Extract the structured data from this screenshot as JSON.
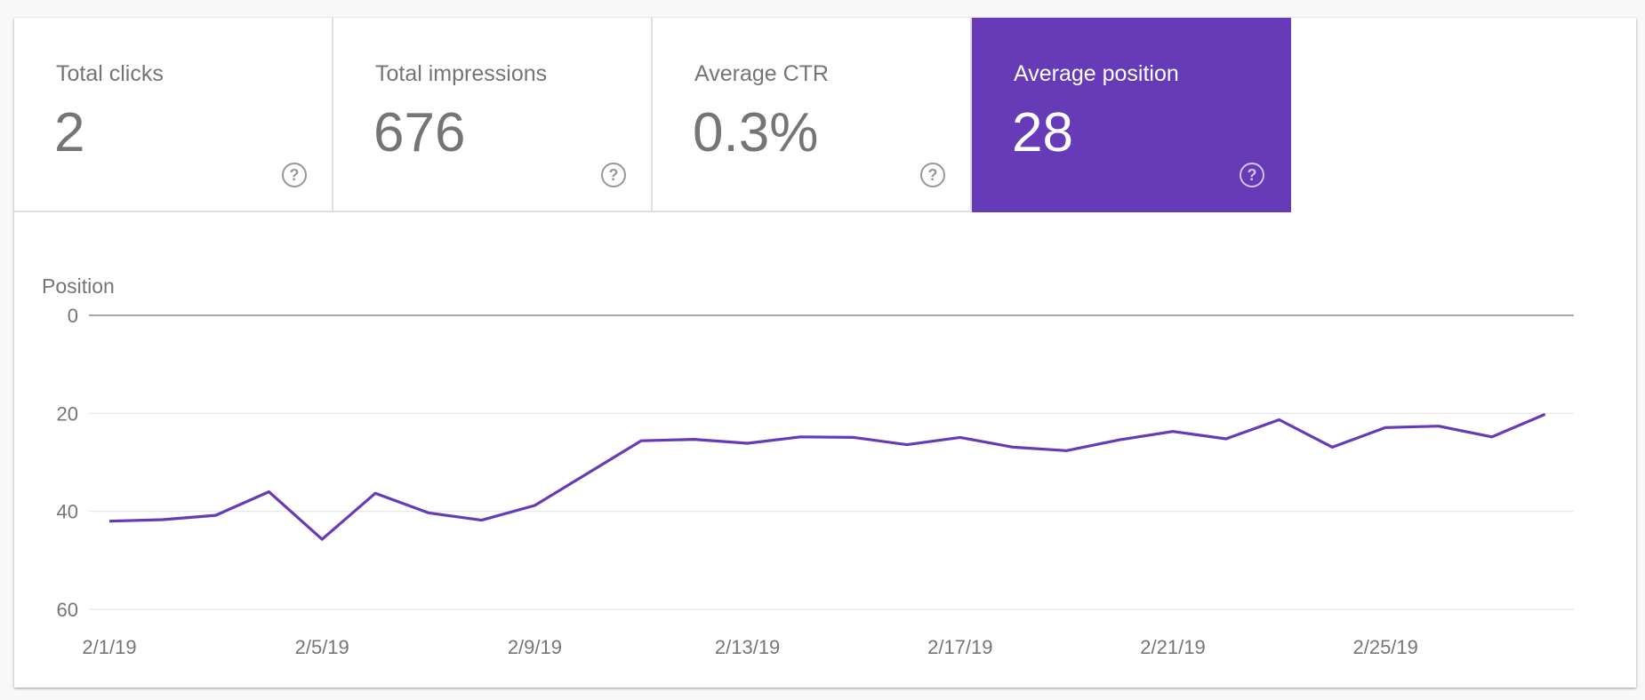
{
  "metrics": [
    {
      "label": "Total clicks",
      "value": "2",
      "help_icon": "help-circle-icon",
      "selected": false
    },
    {
      "label": "Total impressions",
      "value": "676",
      "help_icon": "help-circle-icon",
      "selected": false
    },
    {
      "label": "Average CTR",
      "value": "0.3%",
      "help_icon": "help-circle-icon",
      "selected": false
    },
    {
      "label": "Average position",
      "value": "28",
      "help_icon": "help-circle-icon",
      "selected": true
    }
  ],
  "colors": {
    "accent": "#673ab7",
    "text": "#757575",
    "grid": "#e6e6e6"
  },
  "chart_data": {
    "type": "line",
    "ylabel": "Position",
    "yticks": [
      "0",
      "20",
      "40",
      "60"
    ],
    "ylim": [
      0,
      60
    ],
    "y_inverted": true,
    "grid": true,
    "xticks": [
      "2/1/19",
      "2/5/19",
      "2/9/19",
      "2/13/19",
      "2/17/19",
      "2/21/19",
      "2/25/19"
    ],
    "x": [
      "2/1/19",
      "2/2/19",
      "2/3/19",
      "2/4/19",
      "2/5/19",
      "2/6/19",
      "2/7/19",
      "2/8/19",
      "2/9/19",
      "2/10/19",
      "2/11/19",
      "2/12/19",
      "2/13/19",
      "2/14/19",
      "2/15/19",
      "2/16/19",
      "2/17/19",
      "2/18/19",
      "2/19/19",
      "2/20/19",
      "2/21/19",
      "2/22/19",
      "2/23/19",
      "2/24/19",
      "2/25/19",
      "2/26/19",
      "2/27/19",
      "2/28/19"
    ],
    "series": [
      {
        "values": [
          42,
          41.7,
          40.8,
          36,
          45.7,
          36.3,
          40.3,
          41.8,
          38.8,
          32.2,
          25.6,
          25.3,
          26.1,
          24.8,
          24.9,
          26.4,
          24.9,
          26.9,
          27.6,
          25.4,
          23.7,
          25.2,
          21.3,
          26.9,
          22.9,
          22.6,
          24.8,
          20.2
        ],
        "color": "#673ab7"
      }
    ]
  }
}
